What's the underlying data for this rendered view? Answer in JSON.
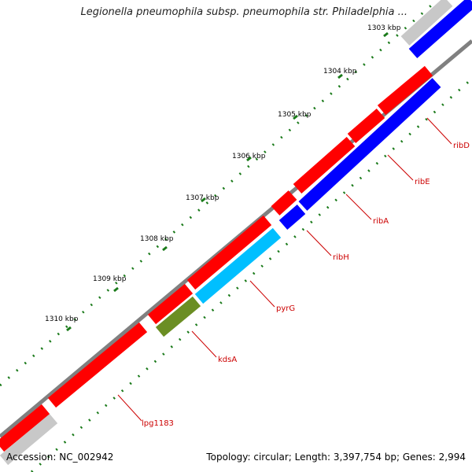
{
  "title": "Legionella pneumophila subsp. pneumophila str. Philadelphia ...",
  "footer": {
    "accession": "Accession: NC_002942",
    "summary": "Topology: circular; Length: 3,397,754 bp; Genes: 2,994"
  },
  "colors": {
    "backbone": "#808080",
    "forward_gene": "#ff0000",
    "reverse_gene": "#0000ff",
    "ruler_dots": "#1a7a1a",
    "gene_label": "#cc0000",
    "pyrG": "#00bfff",
    "kdsA": "#6b8e23",
    "flank": "#c8c8c8"
  },
  "ruler_labels": [
    "1303 kbp",
    "1304 kbp",
    "1305 kbp",
    "1306 kbp",
    "1307 kbp",
    "1308 kbp",
    "1309 kbp",
    "1310 kbp"
  ],
  "gene_labels": [
    "ribD",
    "ribE",
    "ribA",
    "ribH",
    "pyrG",
    "kdsA",
    "lpg1183"
  ]
}
